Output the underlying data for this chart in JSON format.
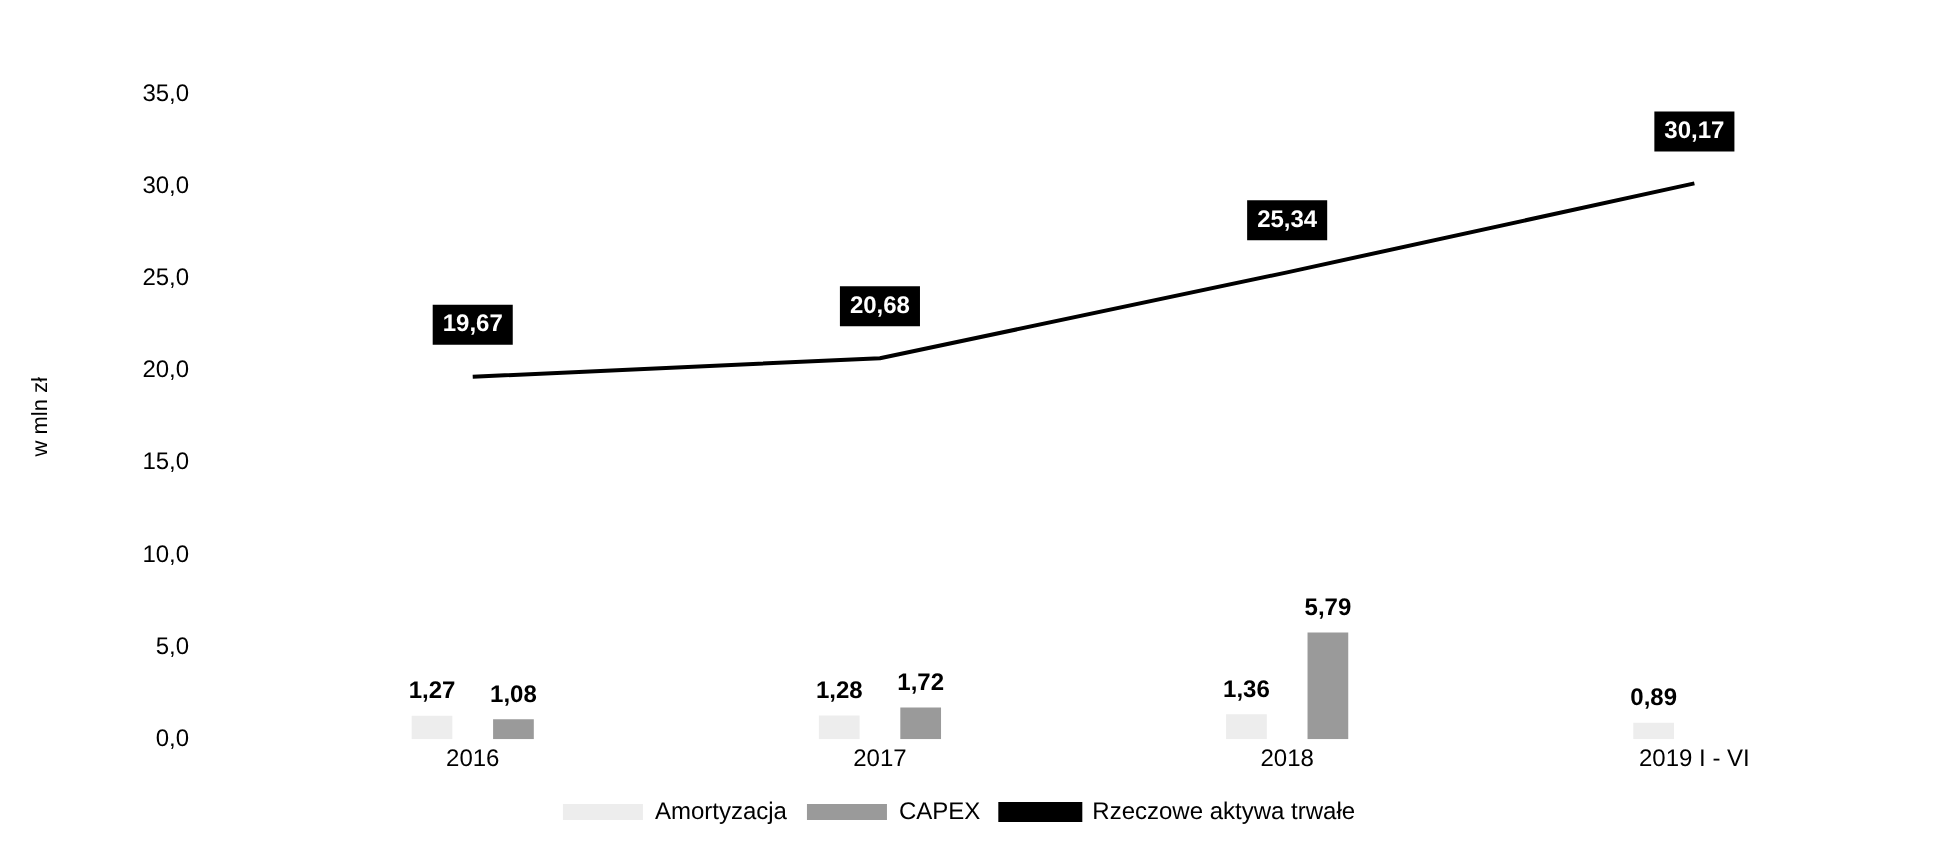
{
  "chart_data": {
    "type": "bar",
    "ylabel": "w mln zł",
    "categories": [
      "2016",
      "2017",
      "2018",
      "2019 I - VI"
    ],
    "series": [
      {
        "name": "Amortyzacja",
        "color": "#ededed",
        "values": [
          1.27,
          1.28,
          1.36,
          0.89
        ],
        "value_labels": [
          "1,27",
          "1,28",
          "1,36",
          "0,89"
        ]
      },
      {
        "name": "CAPEX",
        "color": "#9a9a9a",
        "values": [
          1.08,
          1.72,
          5.79,
          null
        ],
        "value_labels": [
          "1,08",
          "1,72",
          "5,79",
          null
        ]
      },
      {
        "name": "Rzeczowe aktywa trwałe",
        "type": "line",
        "color": "#000000",
        "values": [
          19.67,
          20.68,
          25.34,
          30.17
        ],
        "value_labels": [
          "19,67",
          "20,68",
          "25,34",
          "30,17"
        ]
      }
    ],
    "ylim": [
      0,
      35
    ],
    "yticks": [
      {
        "value": 0,
        "label": "0,0"
      },
      {
        "value": 5,
        "label": "5,0"
      },
      {
        "value": 10,
        "label": "10,0"
      },
      {
        "value": 15,
        "label": "15,0"
      },
      {
        "value": 20,
        "label": "20,0"
      },
      {
        "value": 25,
        "label": "25,0"
      },
      {
        "value": 30,
        "label": "30,0"
      },
      {
        "value": 35,
        "label": "35,0"
      }
    ],
    "grid": false,
    "legend": "bottom",
    "marker": "none",
    "line_style": "solid"
  }
}
